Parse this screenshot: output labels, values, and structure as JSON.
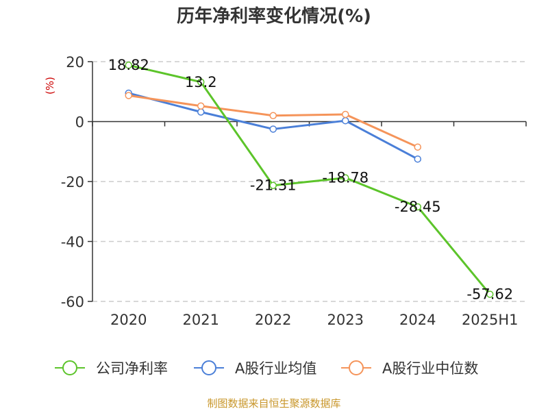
{
  "chart_data": {
    "type": "line",
    "title": "历年净利率变化情况(%)",
    "ylabel": "(%)",
    "xlabel": "",
    "categories": [
      "2020",
      "2021",
      "2022",
      "2023",
      "2024",
      "2025H1"
    ],
    "ylim": [
      -60,
      20
    ],
    "yticks": [
      20,
      0,
      -20,
      -40,
      -60
    ],
    "grid": true,
    "legend_position": "bottom",
    "series": [
      {
        "name": "公司净利率",
        "color": "#5cc42a",
        "values": [
          18.82,
          13.2,
          -21.31,
          -18.78,
          -28.45,
          -57.62
        ],
        "labels": [
          "18.82",
          "13.2",
          "-21.31",
          "-18.78",
          "-28.45",
          "-57.62"
        ]
      },
      {
        "name": "A股行业均值",
        "color": "#4a7fd8",
        "values": [
          9.5,
          3.2,
          -2.5,
          0.3,
          -12.5,
          null
        ],
        "labels": null
      },
      {
        "name": "A股行业中位数",
        "color": "#f5945a",
        "values": [
          8.7,
          5.2,
          2.0,
          2.4,
          -8.5,
          null
        ],
        "labels": null
      }
    ]
  },
  "source": "制图数据来自恒生聚源数据库"
}
